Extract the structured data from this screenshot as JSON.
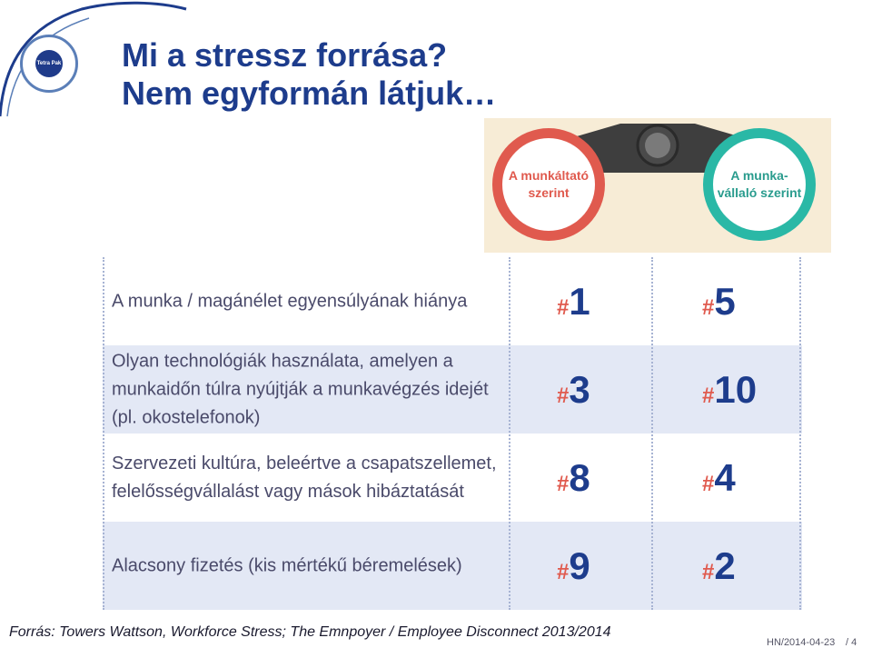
{
  "title": {
    "line1": "Mi a stressz forrása?",
    "line2": "Nem egyformán látjuk…"
  },
  "logo": {
    "text": "Tetra Pak"
  },
  "binoculars": {
    "left_lens": "A munkáltató szerint",
    "right_lens": "A munka-vállaló szerint",
    "colors": {
      "left": "#e05a4e",
      "right": "#2ab8a6",
      "body": "#3e3e3e"
    }
  },
  "rows": [
    {
      "label": "A munka / magánélet egyensúlyának hiánya",
      "employer_rank": "1",
      "employee_rank": "5"
    },
    {
      "label": "Olyan technológiák használata, amelyen a munkaidőn túlra nyújtják a munkavégzés idejét (pl. okostelefonok)",
      "employer_rank": "3",
      "employee_rank": "10"
    },
    {
      "label": "Szervezeti kultúra, beleértve a csapatszellemet, felelősségvállalást vagy mások hibáztatását",
      "employer_rank": "8",
      "employee_rank": "4"
    },
    {
      "label": "Alacsony fizetés (kis mértékű béremelések)",
      "employer_rank": "9",
      "employee_rank": "2"
    }
  ],
  "rank_prefix": "#",
  "footer": {
    "source": "Forrás: Towers Wattson, Workforce Stress; The Emnpoyer / Employee Disconnect 2013/2014",
    "code": "HN/2014-04-23",
    "page": "/ 4"
  },
  "colors": {
    "title": "#1d3c8c",
    "hash": "#e05a4e",
    "row_shade": "#e3e8f5"
  }
}
